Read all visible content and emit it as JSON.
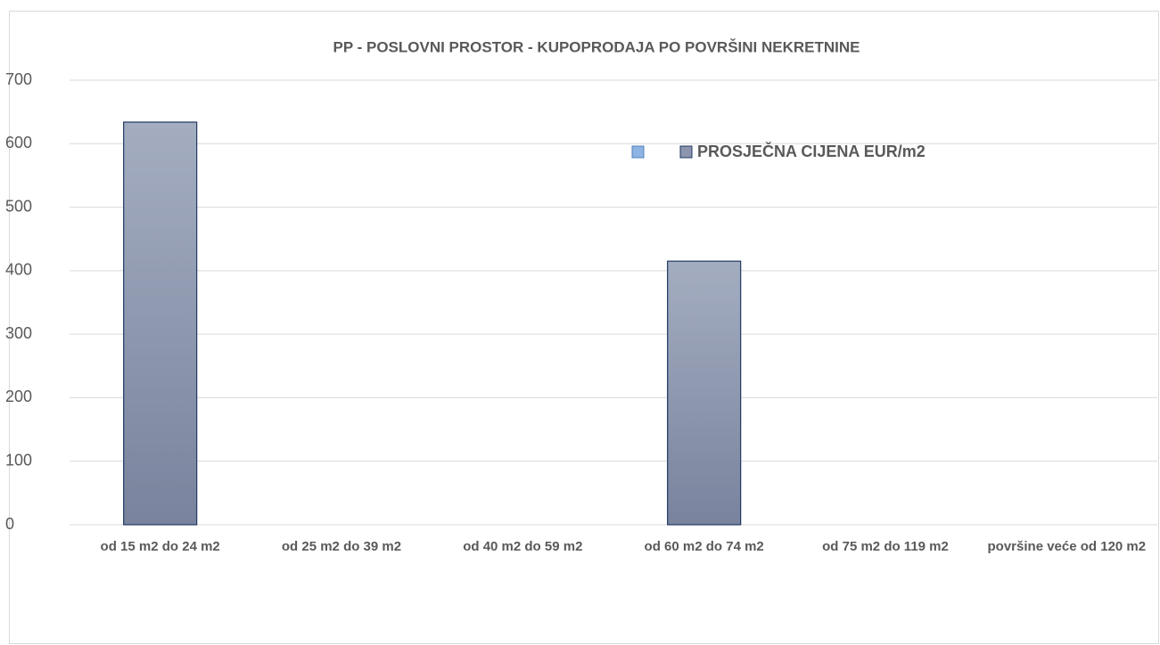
{
  "chart_data": {
    "type": "bar",
    "title": "PP - POSLOVNI PROSTOR - KUPOPRODAJA PO POVRŠINI NEKRETNINE",
    "categories": [
      "od 15 m2 do 24 m2",
      "od 25 m2 do 39 m2",
      "od 40 m2 do 59 m2",
      "od 60 m2 do 74 m2",
      "od 75 m2 do 119 m2",
      "površine veće od 120 m2"
    ],
    "series": [
      {
        "name": "PROSJEČNA CIJENA EUR/m2",
        "color": "#8c95ad",
        "values": [
          634,
          null,
          null,
          415,
          null,
          null
        ]
      }
    ],
    "ylim": [
      0,
      700
    ],
    "yticks": [
      0,
      100,
      200,
      300,
      400,
      500,
      600,
      700
    ],
    "grid": true
  }
}
